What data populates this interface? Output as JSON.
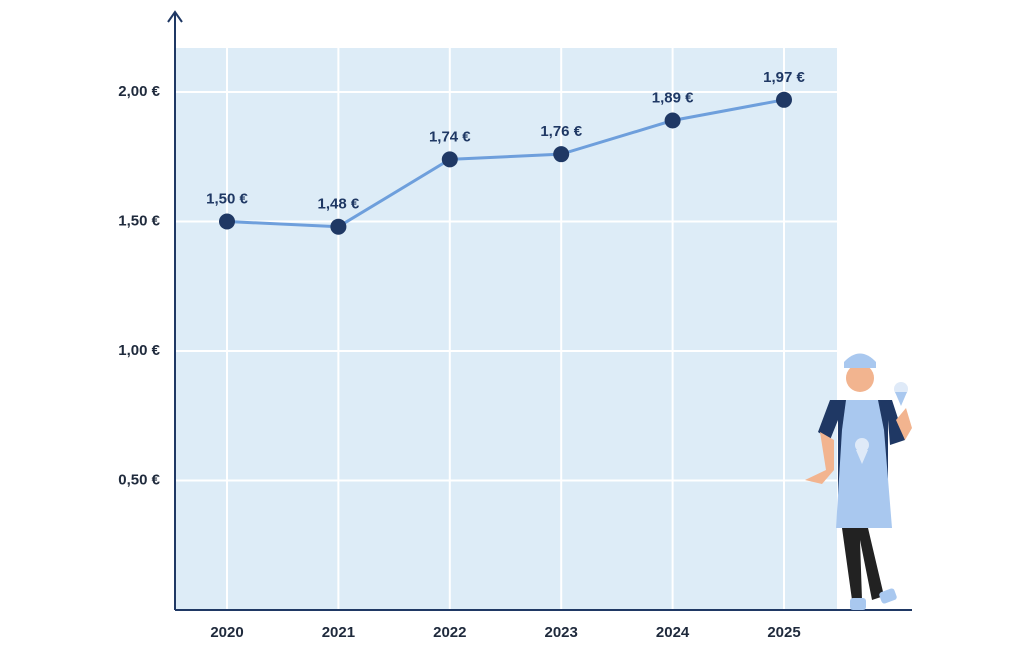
{
  "chart_data": {
    "type": "line",
    "categories": [
      "2020",
      "2021",
      "2022",
      "2023",
      "2024",
      "2025"
    ],
    "values": [
      1.5,
      1.48,
      1.74,
      1.76,
      1.89,
      1.97
    ],
    "value_labels": [
      "1,50 €",
      "1,48 €",
      "1,74 €",
      "1,76 €",
      "1,89 €",
      "1,97 €"
    ],
    "color": "#6e9fdc",
    "marker_color": "#1f3864",
    "plot_background": "#ddecf7",
    "ylim": [
      0,
      2.17
    ],
    "yticks": [
      {
        "value": 0.5,
        "label": "0,50 €"
      },
      {
        "value": 1.0,
        "label": "1,00 €"
      },
      {
        "value": 1.5,
        "label": "1,50 €"
      },
      {
        "value": 2.0,
        "label": "2,00 €"
      }
    ],
    "grid": true
  }
}
